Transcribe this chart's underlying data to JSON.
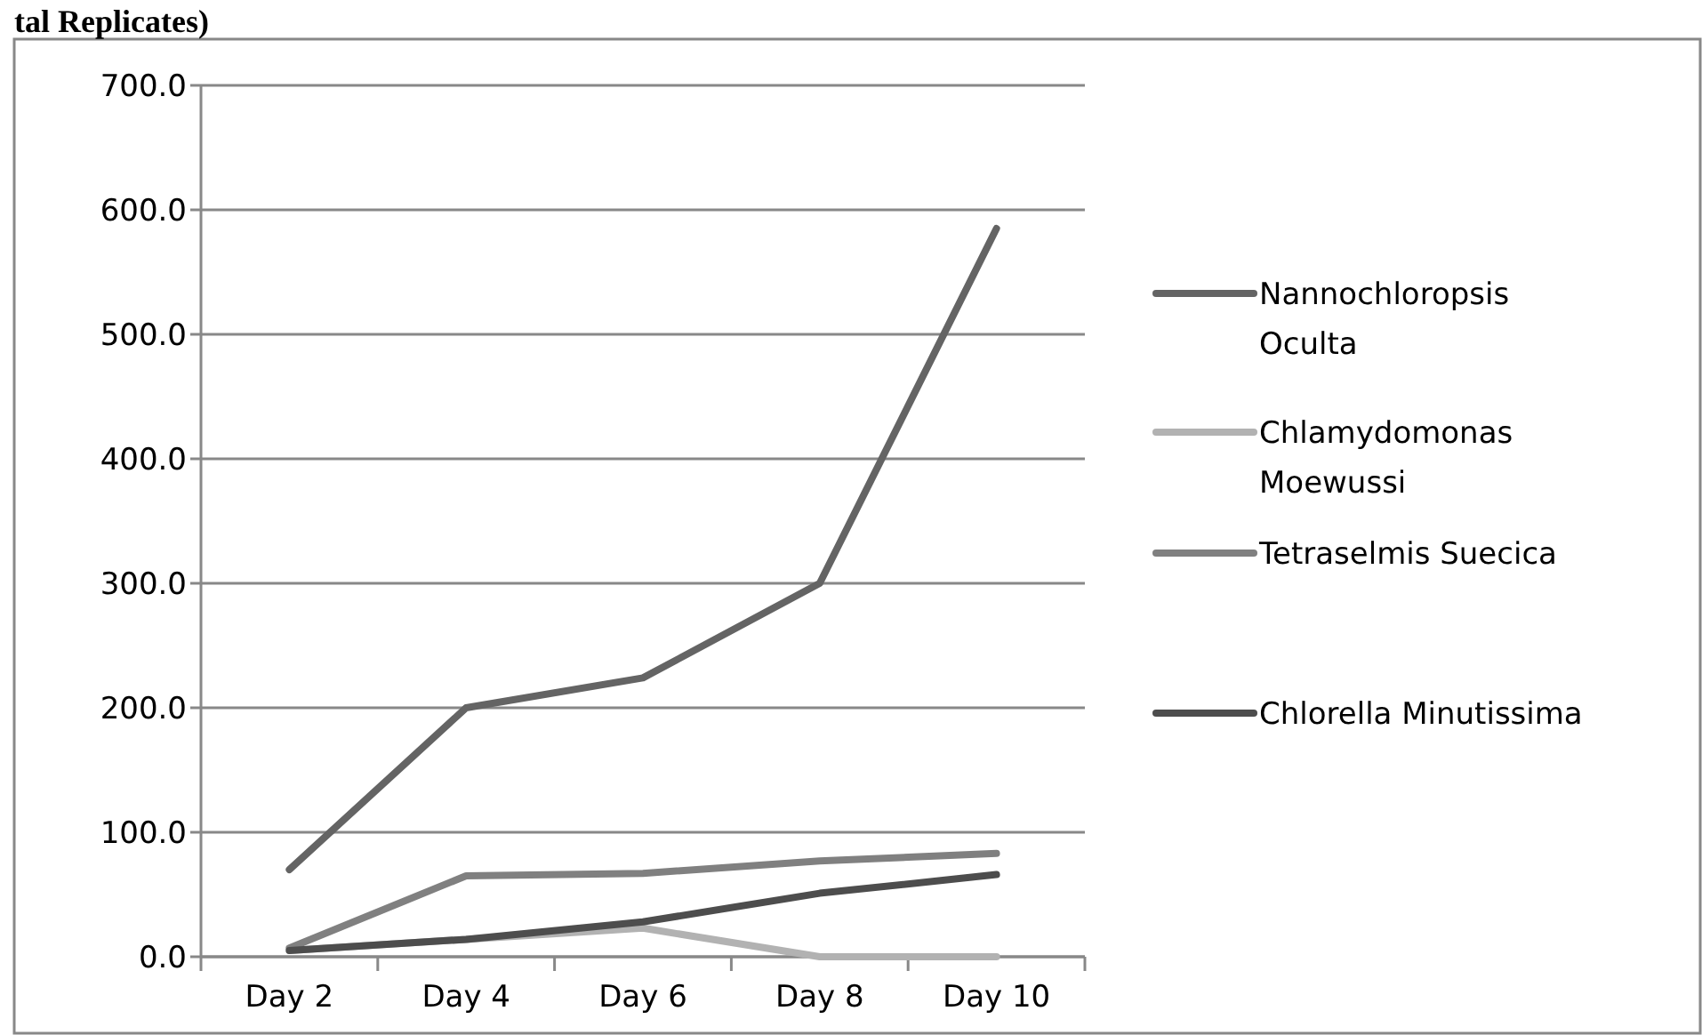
{
  "chart_data": {
    "type": "line",
    "title": "tal Replicates)",
    "categories": [
      "Day 2",
      "Day 4",
      "Day 6",
      "Day 8",
      "Day 10"
    ],
    "series": [
      {
        "name": "Nannochloropsis Oculta",
        "color": "#646464",
        "values": [
          70,
          200,
          224,
          300,
          585
        ]
      },
      {
        "name": "Chlamydomonas Moewussi",
        "color": "#b2b2b2",
        "values": [
          5,
          14,
          23,
          0,
          0
        ]
      },
      {
        "name": "Tetraselmis Suecica",
        "color": "#808080",
        "values": [
          7,
          65,
          67,
          77,
          83
        ]
      },
      {
        "name": "Chlorella Minutissima",
        "color": "#4d4d4d",
        "values": [
          5,
          14,
          28,
          51,
          66
        ]
      }
    ],
    "ylim": [
      0,
      700
    ],
    "yticks": [
      {
        "value": 0,
        "label": "0.0"
      },
      {
        "value": 100,
        "label": "100.0"
      },
      {
        "value": 200,
        "label": "200.0"
      },
      {
        "value": 300,
        "label": "300.0"
      },
      {
        "value": 400,
        "label": "400.0"
      },
      {
        "value": 500,
        "label": "500.0"
      },
      {
        "value": 600,
        "label": "600.0"
      },
      {
        "value": 700,
        "label": "700.0"
      }
    ],
    "grid": "y",
    "legend": "right",
    "marker": "none",
    "line_style": "solid"
  }
}
